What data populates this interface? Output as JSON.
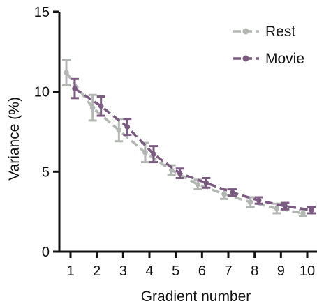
{
  "chart_data": {
    "type": "line",
    "title": "",
    "xlabel": "Gradient number",
    "ylabel": "Variance (%)",
    "x": [
      1,
      2,
      3,
      4,
      5,
      6,
      7,
      8,
      9,
      10
    ],
    "xlim": [
      0.5,
      10.5
    ],
    "ylim": [
      0,
      15
    ],
    "x_ticks": [
      1,
      2,
      3,
      4,
      5,
      6,
      7,
      8,
      9,
      10
    ],
    "y_ticks": [
      0,
      5,
      10,
      15
    ],
    "grid": false,
    "legend_position": "top-right",
    "series": [
      {
        "name": "Rest",
        "color": "#b2b7b4",
        "values": [
          11.2,
          9.0,
          7.6,
          6.2,
          5.1,
          4.2,
          3.6,
          3.1,
          2.7,
          2.4
        ],
        "error": [
          0.8,
          0.8,
          0.7,
          0.6,
          0.3,
          0.3,
          0.3,
          0.3,
          0.3,
          0.2
        ]
      },
      {
        "name": "Movie",
        "color": "#7a5a80",
        "values": [
          10.2,
          9.1,
          7.8,
          6.1,
          4.9,
          4.3,
          3.7,
          3.2,
          2.85,
          2.6
        ],
        "error": [
          0.6,
          0.6,
          0.5,
          0.5,
          0.3,
          0.3,
          0.2,
          0.2,
          0.2,
          0.2
        ]
      }
    ]
  }
}
